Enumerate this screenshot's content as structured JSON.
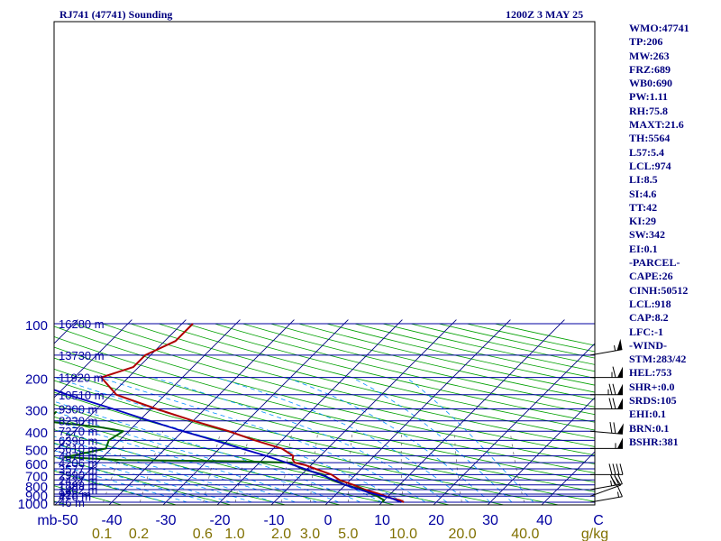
{
  "header": {
    "station": "RJ741 (47741) Sounding",
    "time": "1200Z  3 MAY 25"
  },
  "side_panel": [
    "WMO:47741",
    "TP:206",
    "MW:263",
    "FRZ:689",
    "WB0:690",
    "PW:1.11",
    "RH:75.8",
    "MAXT:21.6",
    "TH:5564",
    "L57:5.4",
    "LCL:974",
    "LI:8.5",
    "SI:4.6",
    "TT:42",
    "KI:29",
    "SW:342",
    "EI:0.1",
    "-PARCEL-",
    "CAPE:26",
    "CINH:50512",
    "LCL:918",
    "CAP:8.2",
    "LFC:-1",
    "-WIND-",
    "STM:283/42",
    "HEL:753",
    "SHR+:0.0",
    "SRDS:105",
    "EHI:0.1",
    "BRN:0.1",
    "BSHR:381"
  ],
  "colors": {
    "isobar": "#0000a0",
    "isotherm": "#000080",
    "dry_adiabat": "#00a000",
    "moist_adiabat": "#0090ff",
    "mixing_ratio": "#606060",
    "temperature": "#b00000",
    "dewpoint": "#006000",
    "parcel": "#0000c0",
    "mixing_ratio_label": "#807000",
    "frame": "#000000"
  },
  "chart_data": {
    "type": "line",
    "diagram": "skew-T log-P",
    "y_axis": {
      "unit": "mb",
      "ticks": [
        100,
        200,
        300,
        400,
        500,
        600,
        700,
        800,
        900,
        1000
      ],
      "ylim": [
        1050,
        100
      ]
    },
    "x_axis": {
      "ticks": [
        -50,
        -40,
        -30,
        -20,
        -10,
        0,
        10,
        20,
        30,
        40,
        50
      ],
      "tick_labels": [
        "mb-50",
        "-40",
        "-30",
        "-20",
        "-10",
        "0",
        "10",
        "20",
        "30",
        "40",
        "C"
      ]
    },
    "mixing_ratio_axis": {
      "unit": "g/kg",
      "ticks": [
        0.1,
        0.2,
        0.6,
        1.0,
        2.0,
        3.0,
        5.0,
        10.0,
        20.0,
        40.0
      ],
      "tick_labels": [
        "0.1",
        "0.2",
        "0.6",
        "1.0",
        "2.0",
        "3.0",
        "5.0",
        "10.0",
        "20.0",
        "40.0"
      ]
    },
    "height_labels": [
      {
        "p": 1000,
        "h": "46 m"
      },
      {
        "p": 925,
        "h": "476 m"
      },
      {
        "p": 900,
        "h": "928 m"
      },
      {
        "p": 850,
        "h": "1402 m"
      },
      {
        "p": 800,
        "h": "1899 m"
      },
      {
        "p": 750,
        "h": "2427 m"
      },
      {
        "p": 700,
        "h": "2990 m"
      },
      {
        "p": 650,
        "h": "3577 m"
      },
      {
        "p": 600,
        "h": "4206 m"
      },
      {
        "p": 550,
        "h": "4878 m"
      },
      {
        "p": 500,
        "h": "5610 m"
      },
      {
        "p": 450,
        "h": "6396 m"
      },
      {
        "p": 400,
        "h": "7270 m"
      },
      {
        "p": 350,
        "h": "8230 m"
      },
      {
        "p": 300,
        "h": "9300 m"
      },
      {
        "p": 250,
        "h": "10510 m"
      },
      {
        "p": 200,
        "h": "11920 m"
      },
      {
        "p": 150,
        "h": "13730 m"
      },
      {
        "p": 100,
        "h": "16280 m"
      }
    ],
    "series": [
      {
        "key": "temperature",
        "points": [
          {
            "p": 1000,
            "t": 14
          },
          {
            "p": 975,
            "t": 13
          },
          {
            "p": 950,
            "t": 11
          },
          {
            "p": 925,
            "t": 9.5
          },
          {
            "p": 900,
            "t": 8
          },
          {
            "p": 850,
            "t": 4.5
          },
          {
            "p": 800,
            "t": 1.5
          },
          {
            "p": 750,
            "t": -2
          },
          {
            "p": 700,
            "t": -4.5
          },
          {
            "p": 650,
            "t": -8.5
          },
          {
            "p": 620,
            "t": -11
          },
          {
            "p": 600,
            "t": -13.5
          },
          {
            "p": 575,
            "t": -14.5
          },
          {
            "p": 550,
            "t": -15
          },
          {
            "p": 500,
            "t": -18.5
          },
          {
            "p": 450,
            "t": -25
          },
          {
            "p": 400,
            "t": -31.5
          },
          {
            "p": 350,
            "t": -40
          },
          {
            "p": 300,
            "t": -49
          },
          {
            "p": 250,
            "t": -59
          },
          {
            "p": 200,
            "t": -65
          },
          {
            "p": 175,
            "t": -61
          },
          {
            "p": 150,
            "t": -61
          },
          {
            "p": 125,
            "t": -58
          },
          {
            "p": 100,
            "t": -58
          }
        ]
      },
      {
        "key": "dewpoint",
        "points": [
          {
            "p": 1000,
            "t": 10
          },
          {
            "p": 975,
            "t": 10
          },
          {
            "p": 950,
            "t": 9
          },
          {
            "p": 925,
            "t": 8
          },
          {
            "p": 900,
            "t": 6.5
          },
          {
            "p": 850,
            "t": 4
          },
          {
            "p": 800,
            "t": 0
          },
          {
            "p": 750,
            "t": -3.5
          },
          {
            "p": 700,
            "t": -6
          },
          {
            "p": 650,
            "t": -11
          },
          {
            "p": 620,
            "t": -13
          },
          {
            "p": 610,
            "t": -14
          },
          {
            "p": 600,
            "t": -14
          },
          {
            "p": 590,
            "t": -24
          },
          {
            "p": 580,
            "t": -46
          },
          {
            "p": 560,
            "t": -57
          },
          {
            "p": 500,
            "t": -51
          },
          {
            "p": 450,
            "t": -52
          },
          {
            "p": 400,
            "t": -51
          },
          {
            "p": 380,
            "t": -56
          },
          {
            "p": 350,
            "t": -68
          },
          {
            "p": 320,
            "t": -67
          },
          {
            "p": 310,
            "t": -67
          }
        ]
      },
      {
        "key": "parcel",
        "points": [
          {
            "p": 1000,
            "t": 13.5
          },
          {
            "p": 950,
            "t": 11
          },
          {
            "p": 900,
            "t": 7
          },
          {
            "p": 850,
            "t": 3.5
          },
          {
            "p": 800,
            "t": 0
          },
          {
            "p": 750,
            "t": -3
          },
          {
            "p": 700,
            "t": -6.5
          },
          {
            "p": 650,
            "t": -10.5
          },
          {
            "p": 600,
            "t": -15
          },
          {
            "p": 550,
            "t": -20
          },
          {
            "p": 500,
            "t": -26
          },
          {
            "p": 450,
            "t": -32.5
          },
          {
            "p": 400,
            "t": -40
          },
          {
            "p": 350,
            "t": -48
          },
          {
            "p": 300,
            "t": -57
          },
          {
            "p": 250,
            "t": -68
          },
          {
            "p": 200,
            "t": -80
          },
          {
            "p": 150,
            "t": -95
          },
          {
            "p": 110,
            "t": -110
          }
        ]
      }
    ],
    "wind_barbs": [
      {
        "p": 1000,
        "dir": 280,
        "spd": 15
      },
      {
        "p": 925,
        "dir": 290,
        "spd": 20
      },
      {
        "p": 850,
        "dir": 280,
        "spd": 35
      },
      {
        "p": 700,
        "dir": 270,
        "spd": 40
      },
      {
        "p": 500,
        "dir": 270,
        "spd": 55
      },
      {
        "p": 400,
        "dir": 265,
        "spd": 70
      },
      {
        "p": 300,
        "dir": 270,
        "spd": 70
      },
      {
        "p": 250,
        "dir": 270,
        "spd": 75
      },
      {
        "p": 200,
        "dir": 270,
        "spd": 65
      },
      {
        "p": 150,
        "dir": 280,
        "spd": 55
      }
    ]
  }
}
